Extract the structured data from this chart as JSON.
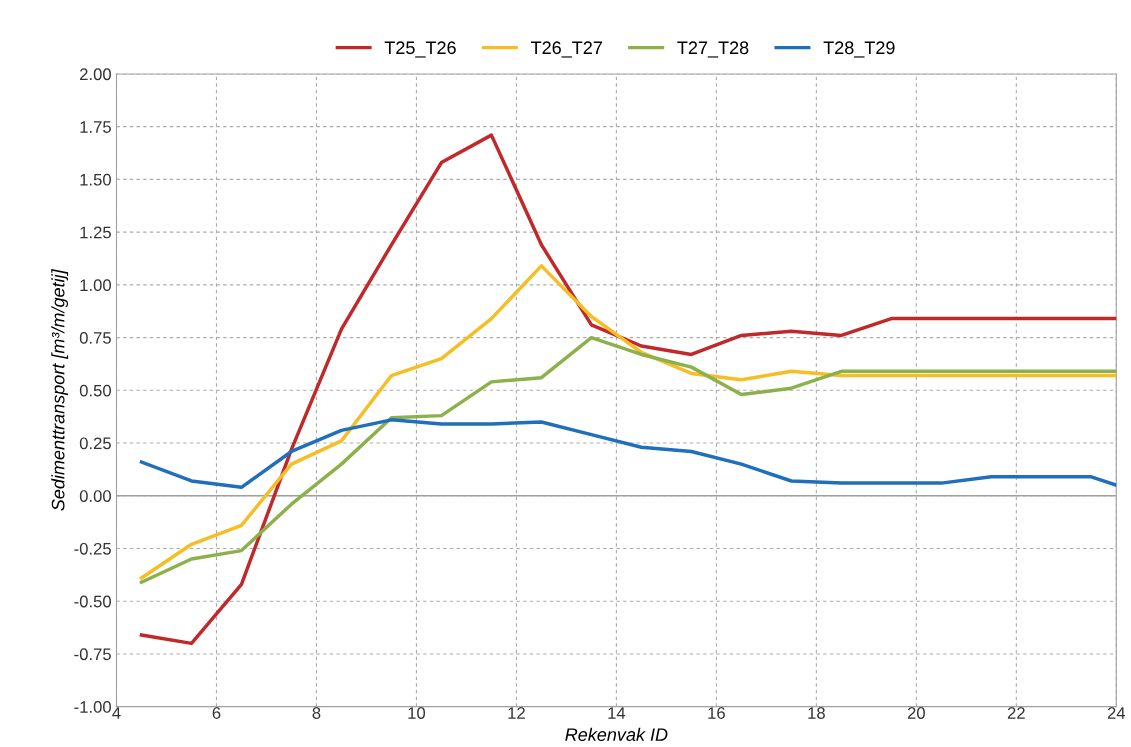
{
  "chart_data": {
    "type": "line",
    "xlabel": "Rekenvak ID",
    "ylabel": "Sedimenttransport [m³/m/getij]",
    "x": [
      4.5,
      5.5,
      6.5,
      7.5,
      8.5,
      9.5,
      10.5,
      11.5,
      12.5,
      13.5,
      14.5,
      15.5,
      16.5,
      17.5,
      18.5,
      19.5,
      20.5,
      21.5,
      22.5,
      23.5,
      24
    ],
    "series": [
      {
        "name": "T25_T26",
        "color": "#c0282a",
        "values": [
          -0.66,
          -0.7,
          -0.42,
          0.22,
          0.79,
          1.19,
          1.58,
          1.71,
          1.19,
          0.81,
          0.71,
          0.67,
          0.76,
          0.78,
          0.76,
          0.84,
          0.84,
          0.84,
          0.84,
          0.84,
          0.84
        ]
      },
      {
        "name": "T26_T27",
        "color": "#f7bd25",
        "values": [
          -0.39,
          -0.23,
          -0.14,
          0.15,
          0.26,
          0.57,
          0.65,
          0.84,
          1.09,
          0.85,
          0.68,
          0.58,
          0.55,
          0.59,
          0.57,
          0.57,
          0.57,
          0.57,
          0.57,
          0.57,
          0.57
        ]
      },
      {
        "name": "T27_T28",
        "color": "#8cb04a",
        "values": [
          -0.41,
          -0.3,
          -0.26,
          -0.04,
          0.15,
          0.37,
          0.38,
          0.54,
          0.56,
          0.75,
          0.67,
          0.61,
          0.48,
          0.51,
          0.59,
          0.59,
          0.59,
          0.59,
          0.59,
          0.59,
          0.59
        ]
      },
      {
        "name": "T28_T29",
        "color": "#1f6fbd",
        "values": [
          0.16,
          0.07,
          0.04,
          0.21,
          0.31,
          0.36,
          0.34,
          0.34,
          0.35,
          0.29,
          0.23,
          0.21,
          0.15,
          0.07,
          0.06,
          0.06,
          0.06,
          0.09,
          0.09,
          0.09,
          0.05
        ]
      }
    ],
    "xlim": [
      4,
      24
    ],
    "xticks": [
      4,
      6,
      8,
      10,
      12,
      14,
      16,
      18,
      20,
      22,
      24
    ],
    "ylim": [
      -1.0,
      2.0
    ],
    "yticks": [
      {
        "value": -1.0,
        "label": "-1.00"
      },
      {
        "value": -0.75,
        "label": "-0.75"
      },
      {
        "value": -0.5,
        "label": "-0.50"
      },
      {
        "value": -0.25,
        "label": "-0.25"
      },
      {
        "value": 0,
        "label": "0.00"
      },
      {
        "value": 0.25,
        "label": "0.25"
      },
      {
        "value": 0.5,
        "label": "0.50"
      },
      {
        "value": 0.75,
        "label": "0.75"
      },
      {
        "value": 1.0,
        "label": "1.00"
      },
      {
        "value": 1.25,
        "label": "1.25"
      },
      {
        "value": 1.5,
        "label": "1.50"
      },
      {
        "value": 1.75,
        "label": "1.75"
      },
      {
        "value": 2.0,
        "label": "2.00"
      }
    ],
    "grid": true,
    "legend": "top",
    "marker": "none",
    "line_style": "solid"
  }
}
